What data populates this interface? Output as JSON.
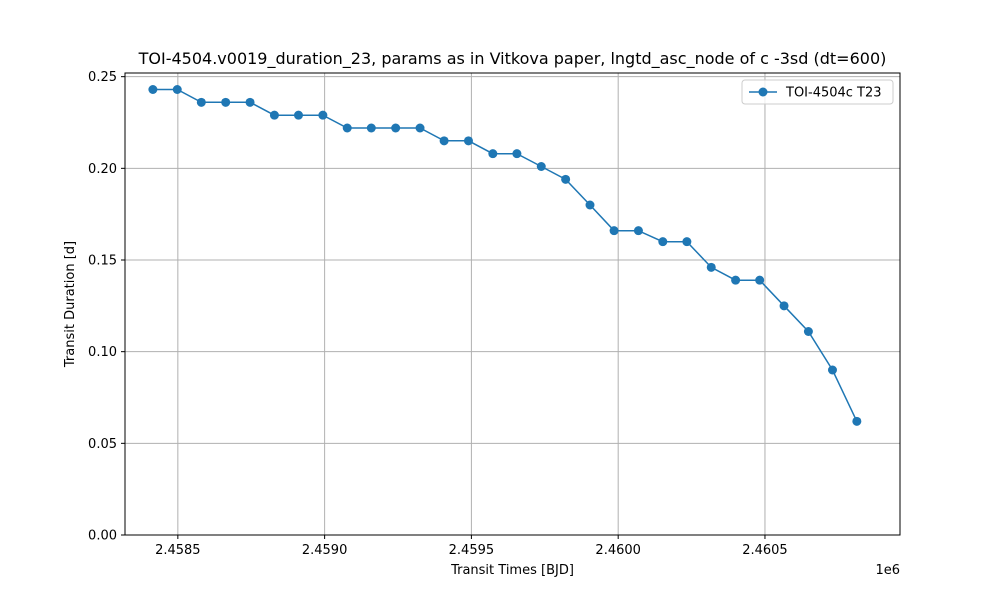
{
  "chart_data": {
    "type": "line",
    "title": "TOI-4504.v0019_duration_23, params as in Vitkova paper, lngtd_asc_node of c -3sd (dt=600)",
    "xlabel": "Transit Times [BJD]",
    "ylabel": "Transit Duration [d]",
    "x_offset_label": "1e6",
    "x_ticks": [
      2458500,
      2459000,
      2459500,
      2460000,
      2460500
    ],
    "x_tick_labels": [
      "2.4585",
      "2.4590",
      "2.4595",
      "2.4600",
      "2.4605"
    ],
    "y_ticks": [
      0.0,
      0.05,
      0.1,
      0.15,
      0.2,
      0.25
    ],
    "y_tick_labels": [
      "0.00",
      "0.05",
      "0.10",
      "0.15",
      "0.20",
      "0.25"
    ],
    "xlim": [
      2458320,
      2460960
    ],
    "ylim": [
      0.0,
      0.252
    ],
    "grid": true,
    "legend_position": "top-right",
    "series": [
      {
        "name": "TOI-4504c T23",
        "color": "#1f77b4",
        "marker": "circle",
        "x": [
          2458415,
          2458498,
          2458580,
          2458663,
          2458746,
          2458829,
          2458911,
          2458994,
          2459077,
          2459159,
          2459242,
          2459325,
          2459407,
          2459490,
          2459573,
          2459655,
          2459738,
          2459821,
          2459904,
          2459986,
          2460069,
          2460152,
          2460234,
          2460317,
          2460400,
          2460482,
          2460565,
          2460648,
          2460730,
          2460813
        ],
        "y": [
          0.243,
          0.243,
          0.236,
          0.236,
          0.236,
          0.229,
          0.229,
          0.229,
          0.222,
          0.222,
          0.222,
          0.222,
          0.215,
          0.215,
          0.208,
          0.208,
          0.201,
          0.194,
          0.18,
          0.166,
          0.166,
          0.16,
          0.16,
          0.146,
          0.139,
          0.139,
          0.125,
          0.111,
          0.09,
          0.062
        ]
      }
    ]
  }
}
